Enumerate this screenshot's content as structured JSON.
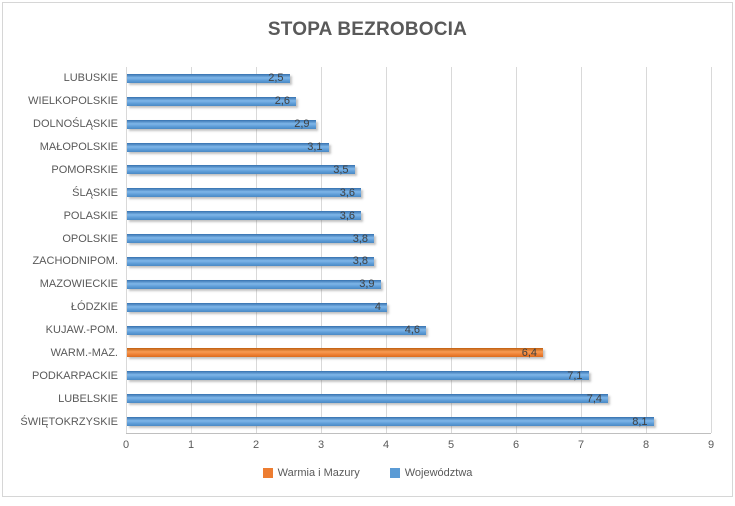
{
  "window": {
    "background": "#ffffff",
    "border_color": "#d6d6d6"
  },
  "chart_data": {
    "type": "bar",
    "orientation": "horizontal",
    "title": "STOPA BEZROBOCIA",
    "xlabel": "",
    "ylabel": "",
    "categories": [
      "LUBUSKIE",
      "WIELKOPOLSKIE",
      "DOLNOŚLĄSKIE",
      "MAŁOPOLSKIE",
      "POMORSKIE",
      "ŚLĄSKIE",
      "POLASKIE",
      "OPOLSKIE",
      "ZACHODNIPOM.",
      "MAZOWIECKIE",
      "ŁÓDZKIE",
      "KUJAW.-POM.",
      "WARM.-MAZ.",
      "PODKARPACKIE",
      "LUBELSKIE",
      "ŚWIĘTOKRZYSKIE"
    ],
    "values": [
      2.5,
      2.6,
      2.9,
      3.1,
      3.5,
      3.6,
      3.6,
      3.8,
      3.8,
      3.9,
      4,
      4.6,
      6.4,
      7.1,
      7.4,
      8.1
    ],
    "value_labels": [
      "2,5",
      "2,6",
      "2,9",
      "3,1",
      "3,5",
      "3,6",
      "3,6",
      "3,8",
      "3,8",
      "3,9",
      "4",
      "4,6",
      "6,4",
      "7,1",
      "7,4",
      "8,1"
    ],
    "highlight_index": 12,
    "xlim": [
      0,
      9
    ],
    "xticks": [
      0,
      1,
      2,
      3,
      4,
      5,
      6,
      7,
      8,
      9
    ],
    "grid": true,
    "legend_position": "bottom",
    "series_styles": {
      "default": {
        "name": "Województwa",
        "color": "#5B9BD5",
        "gradient_top": "#3671AE",
        "gradient_mid": "#7EB6E9",
        "gradient_bottom": "#4A89C4"
      },
      "highlight": {
        "name": "Warmia i Mazury",
        "color": "#ED7D31",
        "gradient_top": "#C05F10",
        "gradient_mid": "#F79B53",
        "gradient_bottom": "#D96C20"
      }
    },
    "legend": [
      {
        "label": "Warmia i Mazury",
        "color": "#ED7D31"
      },
      {
        "label": "Województwa",
        "color": "#5B9BD5"
      }
    ],
    "colors": {
      "title_text": "#595959",
      "axis_text": "#595959",
      "value_label_text": "#404040",
      "gridline": "#d9d9d9"
    }
  }
}
